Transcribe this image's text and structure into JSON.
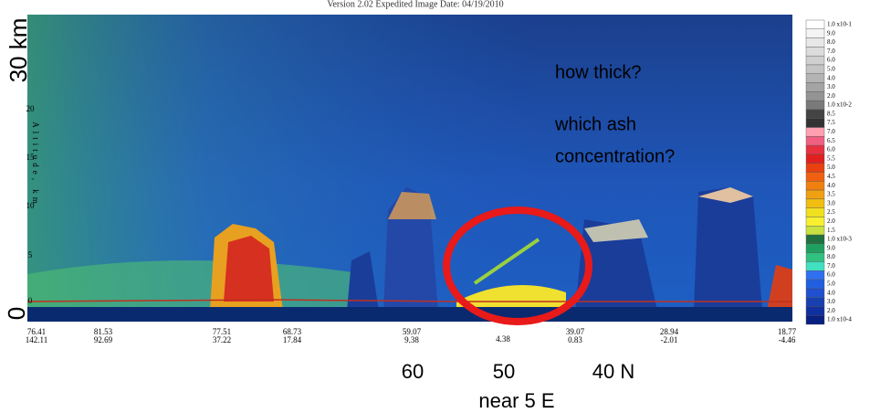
{
  "header": "Version 2.02 Expedited   Image Date: 04/19/2010",
  "y_axis": {
    "top_label": "30 km",
    "bottom_label": "0",
    "title": "Altitude, km",
    "ticks": [
      "20",
      "15",
      "10",
      "5",
      "0"
    ]
  },
  "x_ticks": [
    [
      "76.41",
      "142.11"
    ],
    [
      "81.53",
      "92.69"
    ],
    [
      "77.51",
      "37.22"
    ],
    [
      "68.73",
      "17.84"
    ],
    [
      "59.07",
      "9.38"
    ],
    [
      "4.38"
    ],
    [
      "39.07",
      "0.83"
    ],
    [
      "28.94",
      "-2.01"
    ],
    [
      "18.77",
      "-4.46"
    ]
  ],
  "colorbar": [
    "1.0 x10-1",
    "9.0",
    "8.0",
    "7.0",
    "6.0",
    "5.0",
    "4.0",
    "3.0",
    "2.0",
    "1.0 x10-2",
    "8.5",
    "7.5",
    "7.0",
    "6.5",
    "6.0",
    "5.5",
    "5.0",
    "4.5",
    "4.0",
    "3.5",
    "3.0",
    "2.5",
    "2.0",
    "1.5",
    "1.0 x10-3",
    "9.0",
    "8.0",
    "7.0",
    "6.0",
    "5.0",
    "4.0",
    "3.0",
    "2.0",
    "1.0 x10-4"
  ],
  "annotations": {
    "question_1": "how thick?",
    "question_2_line_1": "which ash",
    "question_2_line_2": "concentration?",
    "lat_60": "60",
    "lat_50": "50",
    "lat_40": "40 N",
    "longitude": "near 5 E"
  }
}
